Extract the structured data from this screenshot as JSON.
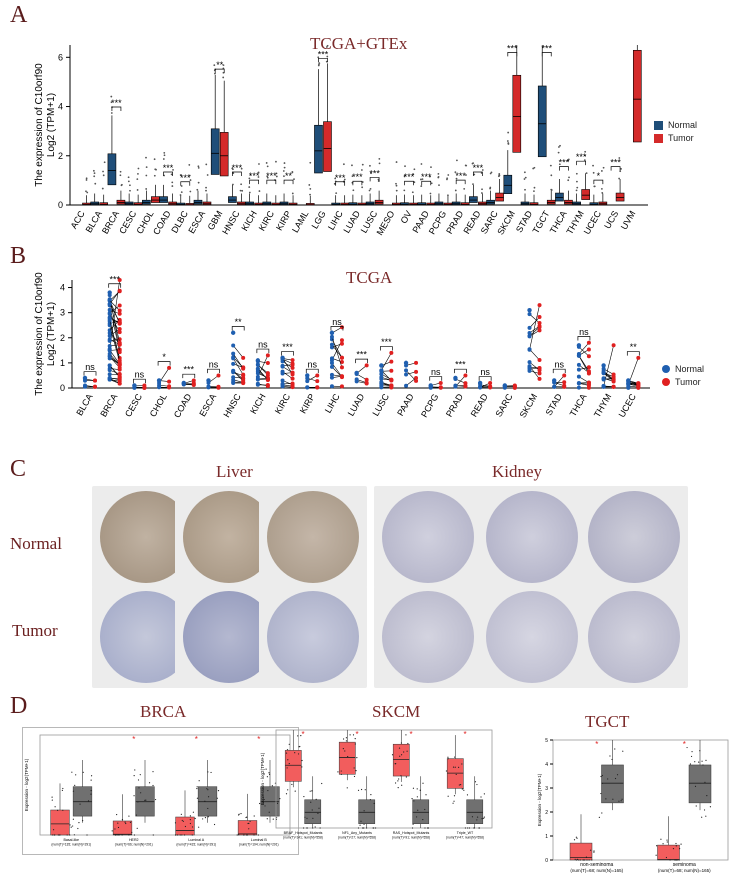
{
  "panels": {
    "a": {
      "letter": "A",
      "title": "TCGA+GTEx"
    },
    "b": {
      "letter": "B",
      "title": "TCGA"
    },
    "c": {
      "letter": "C",
      "col_liver": "Liver",
      "col_kidney": "Kidney",
      "row_normal": "Normal",
      "row_tumor": "Tumor"
    },
    "d": {
      "letter": "D",
      "t1": "BRCA",
      "t2": "SKCM",
      "t3": "TGCT"
    }
  },
  "colors": {
    "normal_box": "#1f4e79",
    "tumor_box": "#d42a2a",
    "normal_dot": "#1f5fb0",
    "tumor_dot": "#e02020",
    "liver_stain": "#b0a08e",
    "kidney_stain": "#bcbcd0",
    "tumor_stain": "#aab0cc"
  },
  "chart_data": [
    {
      "type": "box",
      "title": "TCGA+GTEx",
      "ylabel_line1": "The expression of C10orf90",
      "ylabel_line2": "Log2 (TPM+1)",
      "ylim": [
        0,
        6.5
      ],
      "yticks": [
        0,
        2,
        4,
        6
      ],
      "legend": [
        "Normal",
        "Tumor"
      ],
      "categories": [
        "ACC",
        "BLCA",
        "BRCA",
        "CESC",
        "CHOL",
        "COAD",
        "DLBC",
        "ESCA",
        "GBM",
        "HNSC",
        "KICH",
        "KIRC",
        "KIRP",
        "LAML",
        "LGG",
        "LIHC",
        "LUAD",
        "LUSC",
        "MESO",
        "OV",
        "PAAD",
        "PCPG",
        "PRAD",
        "READ",
        "SARC",
        "SKCM",
        "STAD",
        "TGCT",
        "THCA",
        "THYM",
        "UCEC",
        "UCS",
        "UVM"
      ],
      "normal_median": [
        null,
        0.05,
        1.4,
        0.05,
        0.1,
        0.2,
        0.02,
        0.1,
        2.1,
        0.2,
        0.05,
        0.05,
        0.05,
        null,
        2.2,
        0.02,
        0.03,
        0.05,
        null,
        0.03,
        0.03,
        0.05,
        0.05,
        0.2,
        0.1,
        0.8,
        0.05,
        3.3,
        0.3,
        0.05,
        0.03,
        null,
        null
      ],
      "tumor_median": [
        0.02,
        0.03,
        0.1,
        0.03,
        0.2,
        0.05,
        0.01,
        0.05,
        2.0,
        0.05,
        0.02,
        0.02,
        0.02,
        0.01,
        2.3,
        0.02,
        0.02,
        0.1,
        0.02,
        0.02,
        0.02,
        0.02,
        0.03,
        0.05,
        0.3,
        3.6,
        0.03,
        0.1,
        0.1,
        0.4,
        0.05,
        0.3,
        4.3
      ],
      "significance": [
        "",
        "",
        "***",
        "",
        "",
        "***",
        "***",
        "",
        "**",
        "***",
        "***",
        "***",
        "**",
        "",
        "***",
        "***",
        "***",
        "***",
        "",
        "***",
        "***",
        "",
        "***",
        "***",
        "",
        "***",
        "",
        "***",
        "***",
        "***",
        "*",
        "***",
        ""
      ]
    },
    {
      "type": "paired-scatter",
      "title": "TCGA",
      "ylabel_line1": "The expression of C10orf90",
      "ylabel_line2": "Log2 (TPM+1)",
      "ylim": [
        0,
        4.3
      ],
      "yticks": [
        0,
        1,
        2,
        3,
        4
      ],
      "legend": [
        "Normal",
        "Tumor"
      ],
      "categories": [
        "BLCA",
        "BRCA",
        "CESC",
        "CHOL",
        "COAD",
        "ESCA",
        "HNSC",
        "KICH",
        "KIRC",
        "KIRP",
        "LIHC",
        "LUAD",
        "LUSC",
        "PAAD",
        "PCPG",
        "PRAD",
        "READ",
        "SARC",
        "SKCM",
        "STAD",
        "THCA",
        "THYM",
        "UCEC"
      ],
      "normal_max": [
        0.4,
        3.8,
        0.1,
        0.3,
        0.2,
        0.3,
        2.2,
        1.1,
        1.2,
        0.5,
        2.2,
        0.6,
        0.9,
        1.0,
        0.1,
        0.4,
        0.2,
        0.1,
        3.1,
        0.3,
        1.7,
        0.9,
        0.3
      ],
      "tumor_max": [
        0.3,
        4.3,
        0.1,
        0.8,
        0.3,
        0.5,
        1.2,
        1.3,
        0.8,
        0.5,
        1.9,
        0.9,
        1.4,
        0.4,
        0.2,
        0.5,
        0.2,
        0.1,
        3.3,
        0.5,
        1.8,
        1.7,
        1.2
      ],
      "significance": [
        "ns",
        "***",
        "ns",
        "*",
        "***",
        "ns",
        "**",
        "ns",
        "***",
        "ns",
        "ns",
        "***",
        "***",
        "",
        "ns",
        "***",
        "ns",
        "",
        "",
        "ns",
        "ns",
        "",
        "**"
      ]
    },
    {
      "type": "box",
      "title": "BRCA",
      "ylabel": "Expression - log2(TPM+1)",
      "categories": [
        "Basal-like",
        "HER2",
        "Luminal A",
        "Luminal B"
      ],
      "n_labels": [
        "(num(T)=135; num(N)=291)",
        "(num(T)=66; num(N)=291)",
        "(num(T)=415; num(N)=291)",
        "(num(T)=194; num(N)=291)"
      ],
      "tumor_median": [
        0.5,
        0.03,
        0.2,
        0.05
      ],
      "normal_median": [
        1.5,
        1.5,
        1.5,
        1.5
      ],
      "significance": [
        "",
        "*",
        "*",
        "*"
      ]
    },
    {
      "type": "box",
      "title": "SKCM",
      "ylabel": "Expression - log2(TPM+1)",
      "categories": [
        "BRAF_Hotspot_Mutants",
        "NF1_Any_Mutants",
        "RAS_Hotspot_Mutants",
        "Triple_WT"
      ],
      "n_labels": [
        "(num(T)=141; num(N)=558)",
        "(num(T)=27; num(N)=558)",
        "(num(T)=91; num(N)=558)",
        "(num(T)=47; num(N)=558)"
      ],
      "tumor_median": [
        3.2,
        3.6,
        3.5,
        2.8
      ],
      "normal_median": [
        0.8,
        0.8,
        0.8,
        0.8
      ],
      "significance": [
        "*",
        "*",
        "*",
        "*"
      ]
    },
    {
      "type": "box",
      "title": "TGCT",
      "ylabel": "Expression - log2(TPM+1)",
      "ylim": [
        0,
        5
      ],
      "yticks": [
        0,
        1,
        2,
        3,
        4,
        5
      ],
      "categories": [
        "non-seminoma",
        "seminoma"
      ],
      "n_labels": [
        "(num(T)=68; num(N)=165)",
        "(num(T)=68; num(N)=165)"
      ],
      "tumor_median": [
        0.1,
        0.02
      ],
      "normal_median": [
        3.2,
        3.2
      ],
      "significance": [
        "*",
        "*"
      ]
    }
  ]
}
